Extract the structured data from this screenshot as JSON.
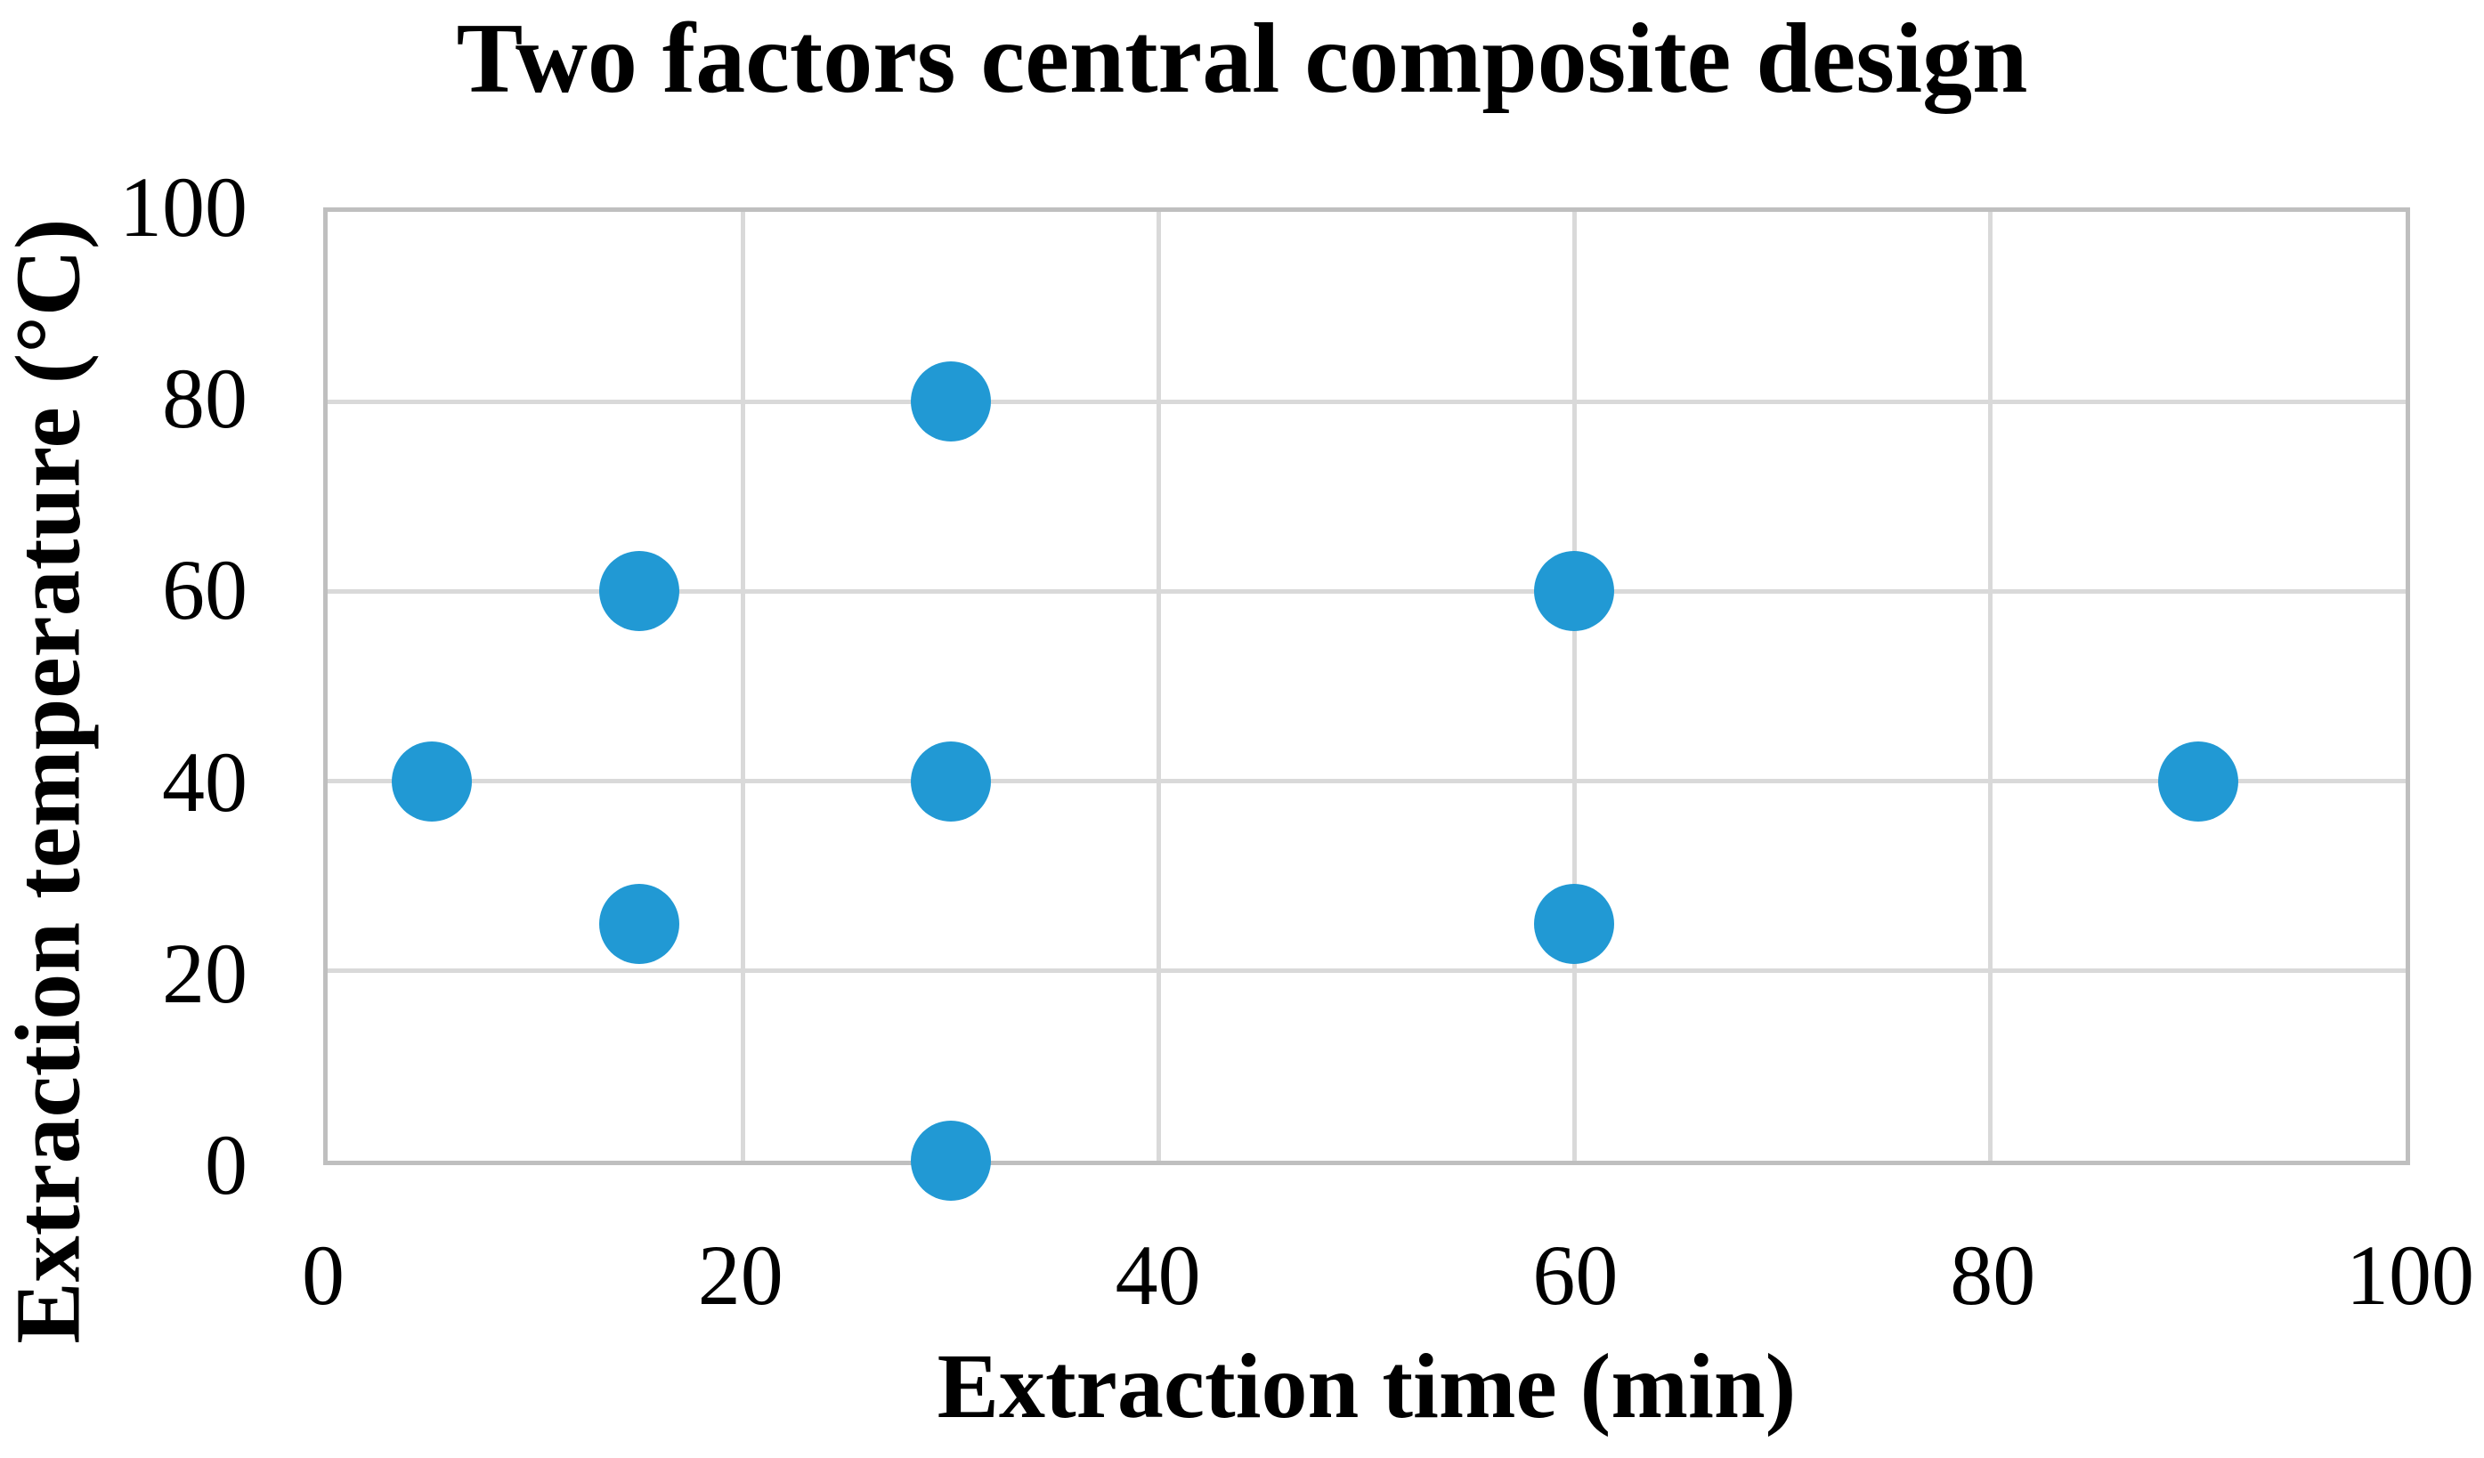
{
  "title": "Two factors central composite design",
  "chart_data": {
    "type": "scatter",
    "title": "Two factors central composite design",
    "xlabel": "Extraction time (min)",
    "ylabel": "Extraction temperature (°C)",
    "xlim": [
      0,
      100
    ],
    "ylim": [
      0,
      100
    ],
    "x_ticks": [
      0,
      20,
      40,
      60,
      80,
      100
    ],
    "y_ticks": [
      0,
      20,
      40,
      60,
      80,
      100
    ],
    "grid": true,
    "legend": false,
    "series": [
      {
        "name": "design-points",
        "color": "#2199d4",
        "points": [
          {
            "x": 5,
            "y": 40
          },
          {
            "x": 15,
            "y": 25
          },
          {
            "x": 15,
            "y": 60
          },
          {
            "x": 30,
            "y": 0
          },
          {
            "x": 30,
            "y": 40
          },
          {
            "x": 30,
            "y": 80
          },
          {
            "x": 60,
            "y": 25
          },
          {
            "x": 60,
            "y": 60
          },
          {
            "x": 90,
            "y": 40
          }
        ]
      }
    ],
    "colors": {
      "gridline": "#d9d9d9",
      "plot_border": "#bfbfbf",
      "marker": "#2199d4",
      "text": "#000000"
    }
  }
}
